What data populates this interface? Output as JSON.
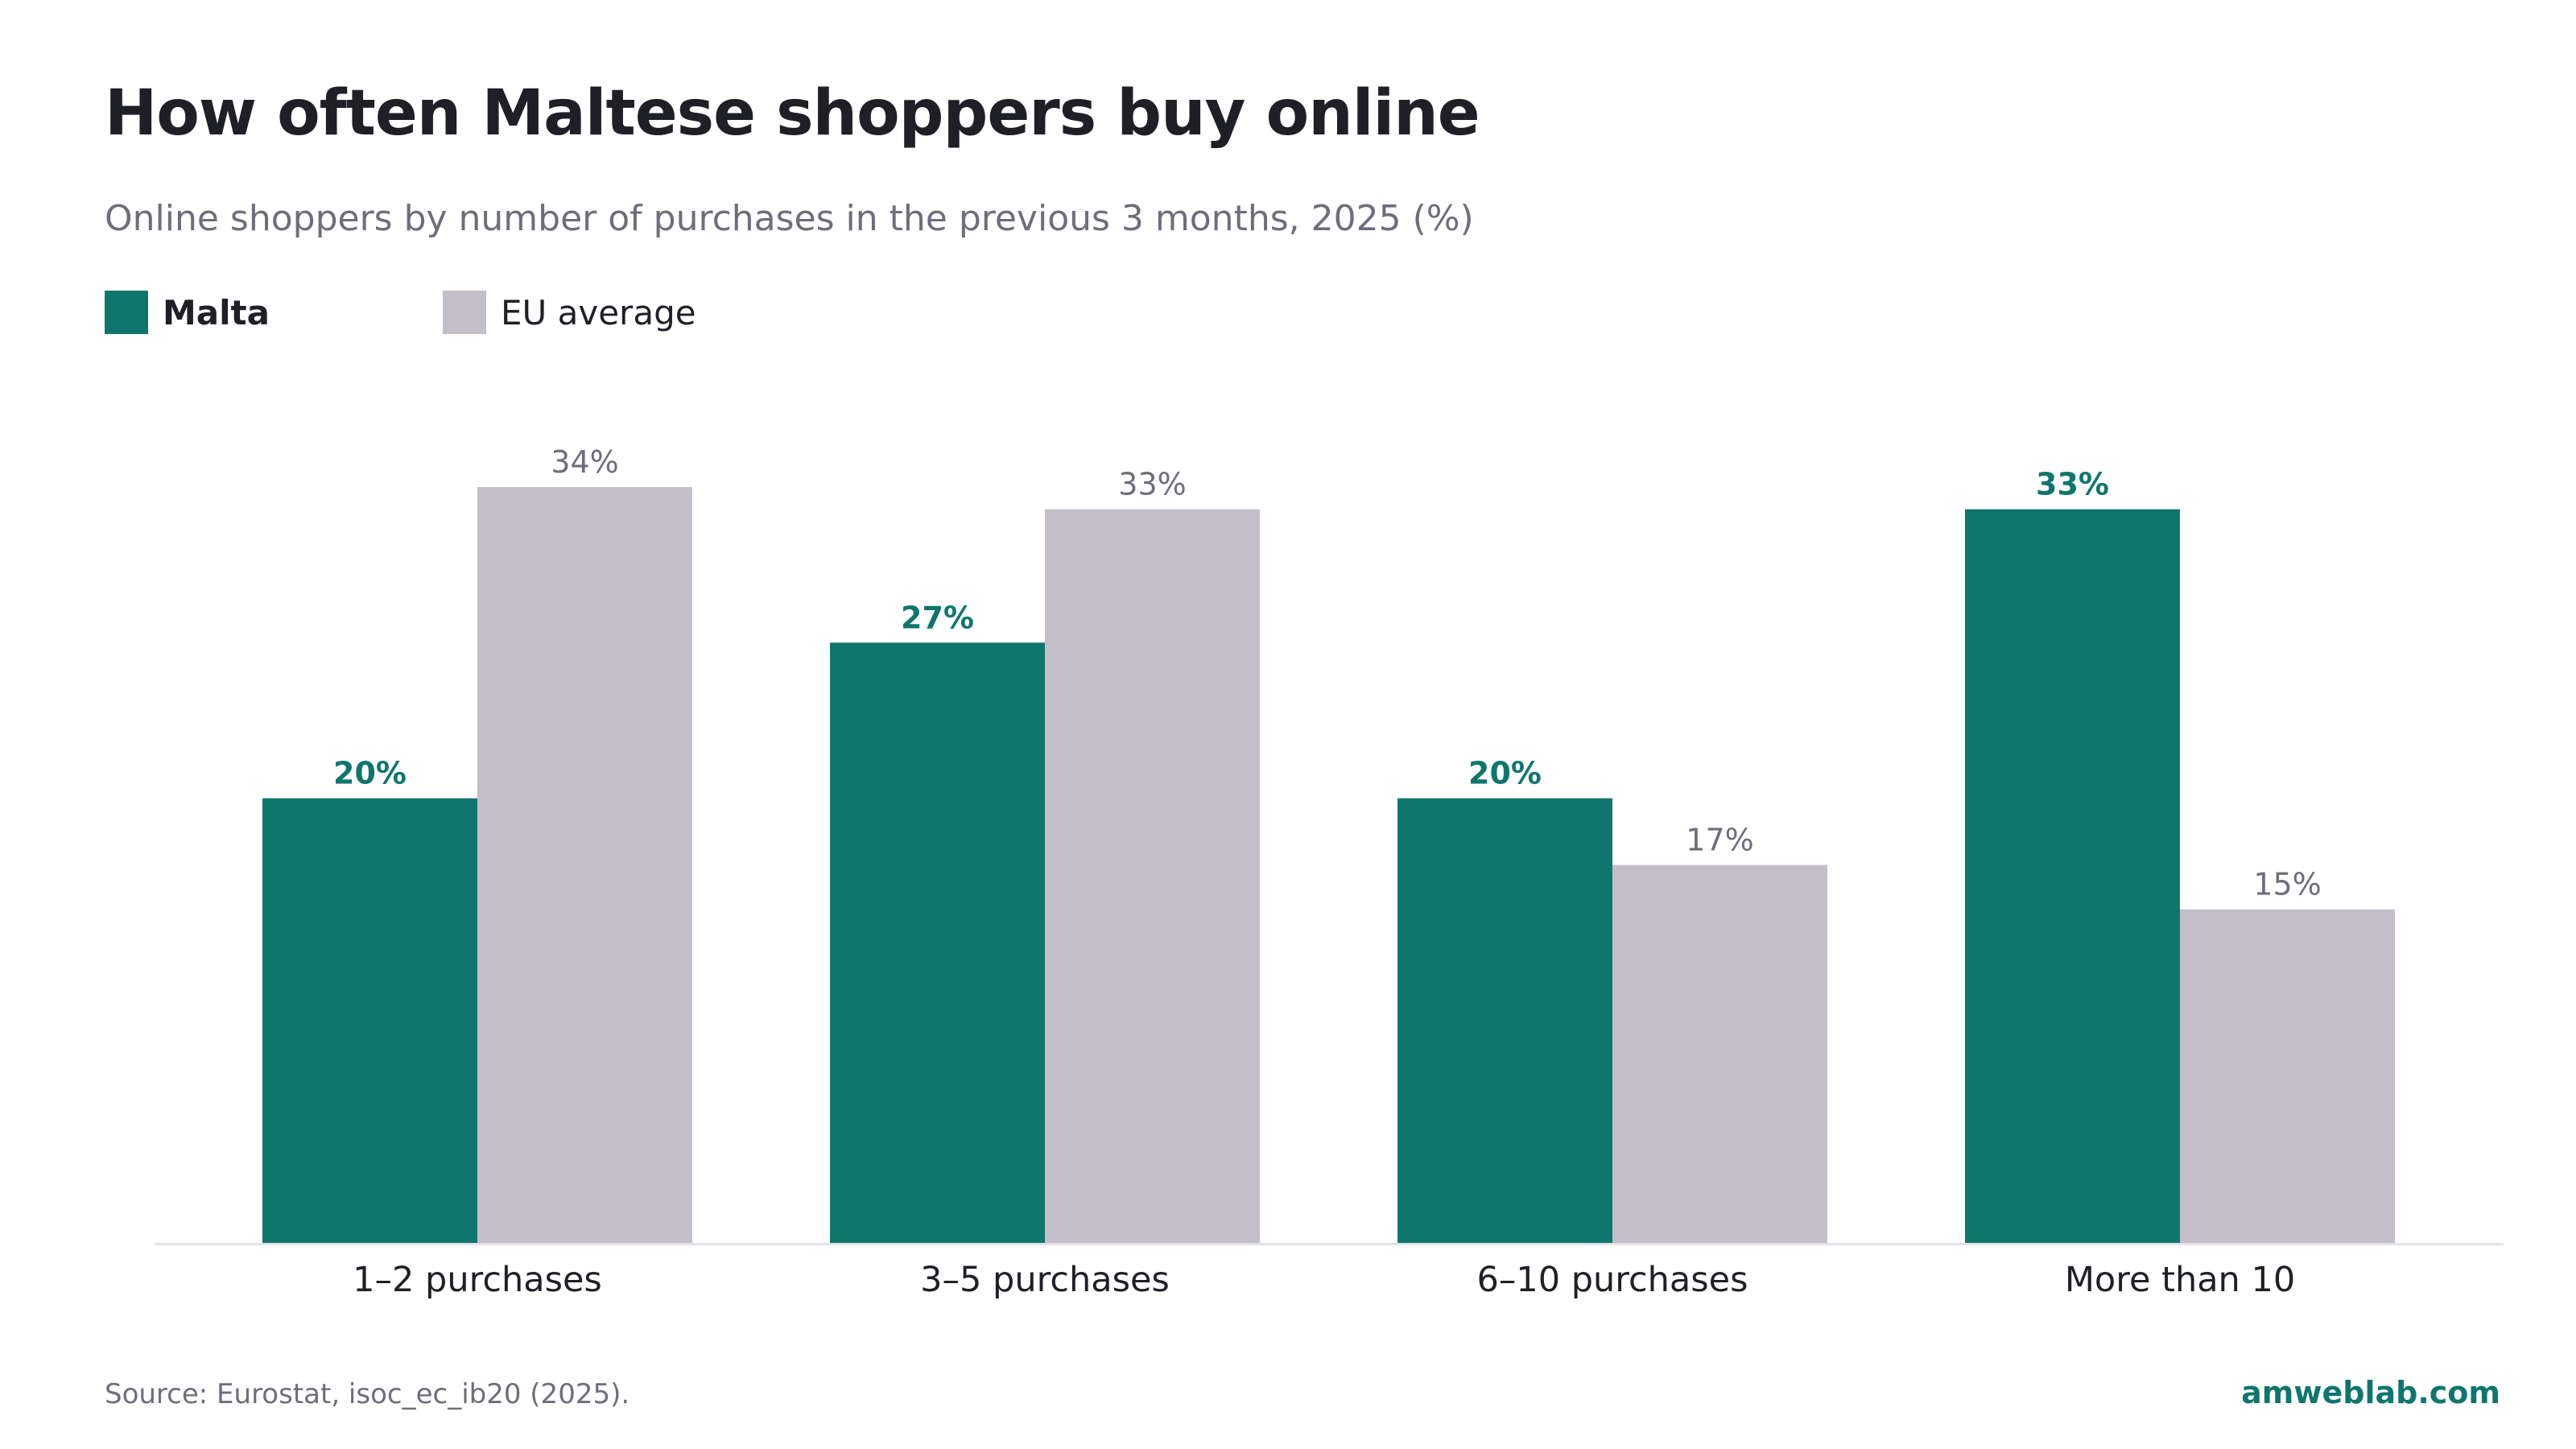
{
  "header": {
    "title": "How often Maltese shoppers buy online",
    "subtitle": "Online shoppers by number of purchases in the previous 3 months, 2025 (%)"
  },
  "legend": {
    "items": [
      {
        "label": "Malta",
        "color": "#0f766e"
      },
      {
        "label": "EU average",
        "color": "#c3bec8"
      }
    ]
  },
  "footer": {
    "source": "Source: Eurostat, isoc_ec_ib20 (2025).",
    "brand": "amweblab.com"
  },
  "chart_data": {
    "type": "bar",
    "categories": [
      "1–2 purchases",
      "3–5 purchases",
      "6–10 purchases",
      "More than 10"
    ],
    "series": [
      {
        "name": "Malta",
        "values": [
          20,
          27,
          20,
          33
        ],
        "labels": [
          "20%",
          "27%",
          "20%",
          "33%"
        ],
        "color": "#0f766e"
      },
      {
        "name": "EU average",
        "values": [
          34,
          33,
          17,
          15
        ],
        "labels": [
          "34%",
          "33%",
          "17%",
          "15%"
        ],
        "color": "#c3bec8"
      }
    ],
    "title": "How often Maltese shoppers buy online",
    "subtitle": "Online shoppers by number of purchases in the previous 3 months, 2025 (%)",
    "xlabel": "",
    "ylabel": "",
    "ylim": [
      0,
      34
    ],
    "grid": false,
    "legend_position": "top-left"
  }
}
